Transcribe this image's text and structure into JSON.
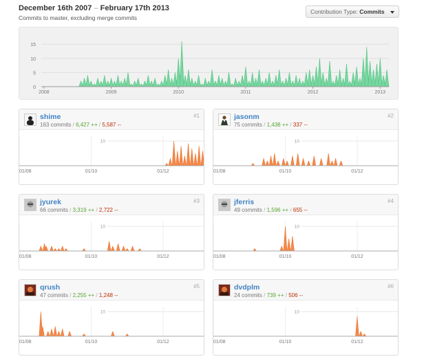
{
  "header": {
    "date_start": "December 16th 2007",
    "separator": "–",
    "date_end": "February 17th 2013",
    "subtitle": "Commits to master, excluding merge commits",
    "contribution_label": "Contribution Type:",
    "contribution_value": "Commits"
  },
  "colors": {
    "overview_fill": "#78d6a0",
    "overview_stroke": "#44c07a",
    "contributor_fill": "#f4894a",
    "contributor_stroke": "#e8691f",
    "link": "#4183c4",
    "additions": "#55a532",
    "deletions": "#bd2c00"
  },
  "chart_data": [
    {
      "type": "area",
      "ylim": [
        0,
        17
      ],
      "y_ticks": [
        "0",
        "5",
        "10",
        "15"
      ],
      "x_ticks": [
        "2008",
        "2009",
        "2010",
        "2011",
        "2012",
        "2013"
      ],
      "xlim": [
        2007.96,
        2013.13
      ],
      "grid": true,
      "series": [
        {
          "x": [
            2008.5,
            2008.55,
            2008.6,
            2008.65,
            2008.7,
            2008.75,
            2008.8,
            2008.85,
            2008.9,
            2008.95,
            2009.0,
            2009.05,
            2009.1,
            2009.15,
            2009.2,
            2009.25,
            2009.3,
            2009.35,
            2009.4,
            2009.45,
            2009.5,
            2009.55,
            2009.6,
            2009.65,
            2009.7,
            2009.75,
            2009.8,
            2009.85,
            2009.9,
            2009.95,
            2010.0,
            2010.05,
            2010.1,
            2010.15,
            2010.2,
            2010.25,
            2010.3,
            2010.35,
            2010.4,
            2010.45,
            2010.5,
            2010.55,
            2010.6,
            2010.65,
            2010.7,
            2010.75,
            2010.8,
            2010.85,
            2010.9,
            2010.95,
            2011.0,
            2011.05,
            2011.1,
            2011.15,
            2011.2,
            2011.25,
            2011.3,
            2011.35,
            2011.4,
            2011.45,
            2011.5,
            2011.55,
            2011.6,
            2011.65,
            2011.7,
            2011.75,
            2011.8,
            2011.85,
            2011.9,
            2011.95,
            2012.0,
            2012.05,
            2012.1,
            2012.15,
            2012.2,
            2012.25,
            2012.3,
            2012.35,
            2012.4,
            2012.45,
            2012.5,
            2012.55,
            2012.6,
            2012.65,
            2012.7,
            2012.75,
            2012.8,
            2012.85,
            2012.9,
            2012.95,
            2013.0,
            2013.05,
            2013.1
          ],
          "y": [
            0,
            2,
            3,
            4,
            2,
            1,
            3,
            2,
            4,
            2,
            3,
            2,
            4,
            2,
            3,
            5,
            1,
            2,
            3,
            1,
            2,
            4,
            2,
            3,
            1,
            2,
            4,
            6,
            3,
            5,
            10,
            16,
            4,
            6,
            3,
            2,
            4,
            1,
            3,
            2,
            6,
            2,
            4,
            3,
            2,
            5,
            1,
            3,
            2,
            4,
            7,
            2,
            5,
            3,
            6,
            2,
            3,
            5,
            2,
            4,
            6,
            2,
            3,
            5,
            2,
            4,
            3,
            2,
            5,
            6,
            4,
            7,
            10,
            5,
            3,
            9,
            2,
            4,
            6,
            3,
            8,
            2,
            5,
            7,
            3,
            10,
            14,
            9,
            6,
            8,
            10,
            4,
            6
          ]
        }
      ]
    },
    {
      "type": "area",
      "x_ticks": [
        "01/08",
        "01/10",
        "01/12"
      ],
      "y_ticks": [
        "10"
      ],
      "ylim": [
        0,
        12
      ],
      "xlim": [
        2008.0,
        2013.13
      ],
      "grid": true,
      "series": [
        {
          "x": [
            2012.1,
            2012.2,
            2012.3,
            2012.4,
            2012.5,
            2012.6,
            2012.7,
            2012.8,
            2012.9,
            2013.0,
            2013.1
          ],
          "y": [
            1,
            3,
            10,
            6,
            8,
            4,
            9,
            7,
            5,
            8,
            6
          ]
        }
      ]
    },
    {
      "type": "area",
      "x_ticks": [
        "01/08",
        "01/10",
        "01/12"
      ],
      "y_ticks": [
        "10"
      ],
      "ylim": [
        0,
        12
      ],
      "xlim": [
        2008.0,
        2013.13
      ],
      "grid": true,
      "series": [
        {
          "x": [
            2009.1,
            2009.4,
            2009.5,
            2009.6,
            2009.7,
            2009.8,
            2009.95,
            2010.05,
            2010.2,
            2010.35,
            2010.5,
            2010.65,
            2010.8,
            2011.0,
            2011.2,
            2011.3,
            2011.4,
            2011.55
          ],
          "y": [
            1,
            3,
            2,
            4,
            5,
            2,
            3,
            2,
            4,
            5,
            3,
            2,
            4,
            3,
            5,
            2,
            3,
            2
          ]
        }
      ]
    },
    {
      "type": "area",
      "x_ticks": [
        "01/08",
        "01/10",
        "01/12"
      ],
      "y_ticks": [
        "10"
      ],
      "ylim": [
        0,
        12
      ],
      "xlim": [
        2008.0,
        2013.13
      ],
      "grid": true,
      "series": [
        {
          "x": [
            2008.6,
            2008.7,
            2008.75,
            2008.9,
            2009.0,
            2009.1,
            2009.2,
            2009.3,
            2009.8,
            2010.5,
            2010.6,
            2010.75,
            2010.9,
            2011.0,
            2011.15,
            2011.35
          ],
          "y": [
            2,
            3,
            2,
            2,
            1,
            1,
            2,
            1,
            1,
            4,
            2,
            3,
            2,
            1,
            2,
            1
          ]
        }
      ]
    },
    {
      "type": "area",
      "x_ticks": [
        "01/08",
        "01/10",
        "01/12"
      ],
      "y_ticks": [
        "10"
      ],
      "ylim": [
        0,
        12
      ],
      "xlim": [
        2008.0,
        2013.13
      ],
      "grid": true,
      "series": [
        {
          "x": [
            2009.15,
            2009.9,
            2010.0,
            2010.1,
            2010.2
          ],
          "y": [
            1,
            2,
            10,
            5,
            6
          ]
        }
      ]
    },
    {
      "type": "area",
      "x_ticks": [
        "01/08",
        "01/10",
        "01/12"
      ],
      "y_ticks": [
        "10"
      ],
      "ylim": [
        0,
        12
      ],
      "xlim": [
        2008.0,
        2013.13
      ],
      "grid": true,
      "series": [
        {
          "x": [
            2008.6,
            2008.65,
            2008.8,
            2008.9,
            2009.0,
            2009.1,
            2009.2,
            2009.4,
            2009.8,
            2010.6,
            2011.0
          ],
          "y": [
            10,
            4,
            2,
            3,
            4,
            2,
            3,
            2,
            1,
            2,
            1
          ]
        }
      ]
    },
    {
      "type": "area",
      "x_ticks": [
        "01/08",
        "01/10",
        "01/12"
      ],
      "y_ticks": [
        "10"
      ],
      "ylim": [
        0,
        12
      ],
      "xlim": [
        2008.0,
        2013.13
      ],
      "grid": true,
      "series": [
        {
          "x": [
            2012.0,
            2012.1,
            2012.2
          ],
          "y": [
            8,
            2,
            1
          ]
        }
      ]
    }
  ],
  "contributors": [
    {
      "name": "shime",
      "rank": "#1",
      "commits": "163 commits",
      "additions": "6,427 ++",
      "deletions": "5,587 --",
      "avatar": "dark-figure"
    },
    {
      "name": "jasonm",
      "rank": "#2",
      "commits": "75 commits",
      "additions": "1,438 ++",
      "deletions": "337 --",
      "avatar": "suit-figure"
    },
    {
      "name": "jyurek",
      "rank": "#3",
      "commits": "66 commits",
      "additions": "3,319 ++",
      "deletions": "2,722 --",
      "avatar": "face-photo"
    },
    {
      "name": "jferris",
      "rank": "#4",
      "commits": "49 commits",
      "additions": "1,596 ++",
      "deletions": "655 --",
      "avatar": "face-photo"
    },
    {
      "name": "qrush",
      "rank": "#5",
      "commits": "47 commits",
      "additions": "2,255 ++",
      "deletions": "1,248 --",
      "avatar": "red-photo"
    },
    {
      "name": "dvdplm",
      "rank": "#6",
      "commits": "24 commits",
      "additions": "739 ++",
      "deletions": "506 --",
      "avatar": "red-photo"
    }
  ]
}
